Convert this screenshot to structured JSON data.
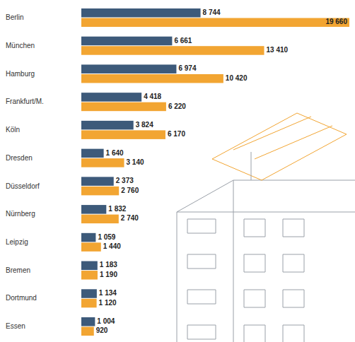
{
  "chart_data": {
    "type": "bar",
    "orientation": "horizontal",
    "data_labels": true,
    "tick_labels": false,
    "categories": [
      "Berlin",
      "München",
      "Hamburg",
      "Frankfurt/M.",
      "Köln",
      "Dresden",
      "Düsseldorf",
      "Nürnberg",
      "Leipzig",
      "Bremen",
      "Dortmund",
      "Essen"
    ],
    "xlim": [
      0,
      19660
    ],
    "series": [
      {
        "color": "#3d5a7a",
        "values": [
          8744,
          6661,
          6974,
          4418,
          3824,
          1640,
          2373,
          1832,
          1059,
          1183,
          1134,
          1004
        ],
        "value_labels": [
          "8 744",
          "6 661",
          "6 974",
          "4 418",
          "3 824",
          "1 640",
          "2 373",
          "1 832",
          "1 059",
          "1 183",
          "1 134",
          "1 004"
        ]
      },
      {
        "color": "#f2a532",
        "values": [
          19660,
          13410,
          10420,
          6220,
          6170,
          3140,
          2760,
          2740,
          1440,
          1190,
          1120,
          920
        ],
        "value_labels": [
          "19 660",
          "13 410",
          "10 420",
          "6 220",
          "6 170",
          "3 140",
          "2 760",
          "2 740",
          "1 440",
          "1 190",
          "1 120",
          "920"
        ]
      }
    ]
  }
}
